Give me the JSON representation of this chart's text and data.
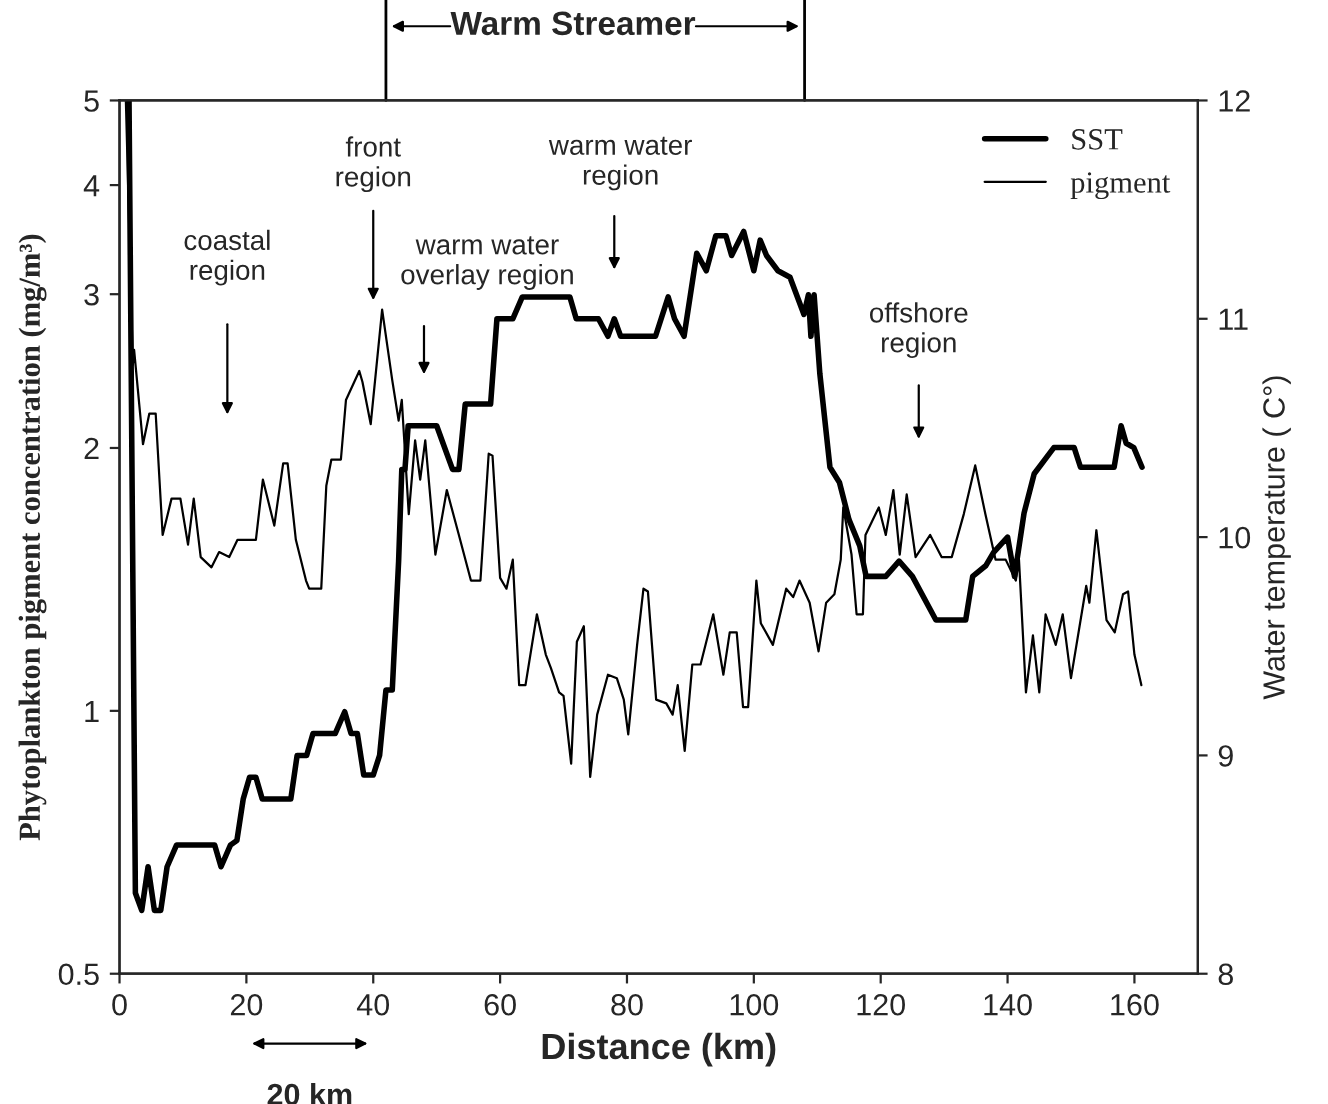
{
  "chart_data": {
    "type": "line",
    "xlabel": "Distance (km)",
    "ylabel": "Phytoplankton pigment concentration (mg/m³)",
    "y2label": "Water temperature ( C°)",
    "xlim": [
      0,
      170
    ],
    "xticks": [
      0,
      20,
      40,
      60,
      80,
      100,
      120,
      140,
      160
    ],
    "ylim": [
      0.5,
      5
    ],
    "yticks": [
      0.5,
      1,
      2,
      3,
      4,
      5
    ],
    "y2lim": [
      8,
      12
    ],
    "y2ticks": [
      8,
      9,
      10,
      11,
      12
    ],
    "log": "y",
    "grid": false,
    "legend": "top right",
    "marker": "none",
    "series": [
      {
        "name": "SST",
        "color": "#000000",
        "axis": "y2",
        "x": [
          1.5,
          2.5,
          3.5,
          4.5,
          5.5,
          6.5,
          7.5,
          9,
          15,
          16,
          17.5,
          18.5,
          19.5,
          20.5,
          21.5,
          22.5,
          27,
          28,
          29.5,
          30.5,
          34,
          35.5,
          36.5,
          37.5,
          38.5,
          40,
          41,
          42,
          43,
          44,
          44.5,
          45,
          45.5,
          50,
          51,
          52.5,
          53.5,
          54.5,
          58.5,
          59.5,
          62,
          63.5,
          71,
          72,
          75.5,
          77,
          78,
          79,
          84.5,
          86.5,
          87.5,
          89,
          91,
          92.5,
          94,
          95.6,
          96.5,
          98.4,
          100,
          101,
          102,
          103.8,
          105.7,
          107.9,
          108.6,
          109,
          109.5,
          110.4,
          112,
          113.5,
          115,
          116.7,
          117.7,
          120.8,
          122.9,
          125,
          128.7,
          133.4,
          134.5,
          136.6,
          137.8,
          140,
          141.1,
          142.6,
          144.2,
          147.3,
          150.5,
          151.5,
          156.8,
          157.9,
          158.7,
          159.9,
          161.2
        ],
        "values": [
          12,
          8.37,
          8.29,
          8.49,
          8.29,
          8.29,
          8.49,
          8.59,
          8.59,
          8.49,
          8.59,
          8.61,
          8.8,
          8.9,
          8.9,
          8.8,
          8.8,
          9.0,
          9.0,
          9.1,
          9.1,
          9.2,
          9.1,
          9.1,
          8.91,
          8.91,
          9.0,
          9.3,
          9.3,
          9.89,
          10.31,
          10.31,
          10.51,
          10.51,
          10.43,
          10.31,
          10.31,
          10.61,
          10.61,
          11.0,
          11.0,
          11.1,
          11.1,
          11.0,
          11.0,
          10.92,
          11.0,
          10.92,
          10.92,
          11.1,
          11.0,
          10.92,
          11.3,
          11.22,
          11.38,
          11.38,
          11.29,
          11.4,
          11.22,
          11.36,
          11.29,
          11.22,
          11.19,
          11.02,
          11.11,
          10.92,
          11.11,
          10.75,
          10.32,
          10.25,
          10.08,
          9.96,
          9.82,
          9.82,
          9.89,
          9.82,
          9.62,
          9.62,
          9.82,
          9.87,
          9.93,
          10.0,
          9.82,
          10.11,
          10.29,
          10.41,
          10.41,
          10.32,
          10.32,
          10.51,
          10.43,
          10.41,
          10.32
        ]
      },
      {
        "name": "pigment",
        "color": "#000000",
        "x": [
          1,
          2.1,
          2.3,
          3.7,
          4.7,
          5.7,
          6.8,
          8.2,
          9.6,
          10.8,
          11.7,
          12.8,
          14.5,
          15.7,
          17.3,
          18.6,
          21.5,
          22.6,
          24.4,
          25.8,
          26.5,
          27.8,
          29.4,
          29.9,
          31.8,
          32.6,
          33.4,
          34.9,
          35.7,
          37.8,
          38.3,
          39.6,
          41.4,
          43,
          44,
          44.5,
          45.6,
          46.6,
          47.4,
          48.2,
          49.8,
          51.6,
          53.5,
          55.4,
          56.9,
          58.2,
          58.8,
          60,
          61,
          62,
          63,
          64,
          65.8,
          67.2,
          68,
          69.3,
          70,
          71.2,
          72.1,
          73.2,
          74.2,
          75.3,
          77,
          78.4,
          79.5,
          80.2,
          81.6,
          82.6,
          83.3,
          84.6,
          86.2,
          87.2,
          88,
          89.1,
          90.3,
          91.6,
          93.6,
          95.2,
          96.2,
          97.3,
          98.3,
          99.1,
          100.4,
          101.1,
          103,
          105.1,
          106.2,
          107.2,
          108.8,
          110.2,
          111.4,
          112.7,
          113.7,
          114.1,
          115.4,
          116.2,
          117.2,
          117.6,
          119.7,
          120.8,
          122,
          123,
          124.1,
          125.5,
          127.8,
          129.6,
          131.2,
          133.1,
          134.9,
          136.5,
          138.1,
          139.7,
          141.3,
          141.8,
          142.9,
          144,
          145,
          146,
          147.6,
          148.7,
          150,
          152.4,
          152.9,
          154,
          155.6,
          156.9,
          158.2,
          159,
          160,
          161.1
        ],
        "values": [
          5,
          2.49,
          2.59,
          2.02,
          2.19,
          2.19,
          1.59,
          1.75,
          1.75,
          1.55,
          1.75,
          1.5,
          1.46,
          1.52,
          1.5,
          1.57,
          1.57,
          1.84,
          1.63,
          1.92,
          1.92,
          1.57,
          1.41,
          1.38,
          1.38,
          1.81,
          1.94,
          1.94,
          2.27,
          2.45,
          2.38,
          2.13,
          2.88,
          2.39,
          2.15,
          2.27,
          1.68,
          2.04,
          1.84,
          2.04,
          1.51,
          1.79,
          1.59,
          1.41,
          1.41,
          1.97,
          1.96,
          1.42,
          1.38,
          1.49,
          1.07,
          1.07,
          1.29,
          1.16,
          1.12,
          1.05,
          1.04,
          0.87,
          1.2,
          1.25,
          0.84,
          0.99,
          1.1,
          1.09,
          1.03,
          0.94,
          1.19,
          1.38,
          1.37,
          1.03,
          1.02,
          0.99,
          1.07,
          0.9,
          1.13,
          1.13,
          1.29,
          1.1,
          1.23,
          1.23,
          1.01,
          1.01,
          1.41,
          1.26,
          1.19,
          1.38,
          1.35,
          1.41,
          1.33,
          1.17,
          1.33,
          1.36,
          1.49,
          1.71,
          1.51,
          1.29,
          1.29,
          1.59,
          1.71,
          1.59,
          1.79,
          1.51,
          1.77,
          1.5,
          1.59,
          1.5,
          1.5,
          1.68,
          1.91,
          1.68,
          1.49,
          1.49,
          1.41,
          1.49,
          1.05,
          1.22,
          1.05,
          1.29,
          1.19,
          1.29,
          1.09,
          1.39,
          1.33,
          1.61,
          1.27,
          1.23,
          1.36,
          1.37,
          1.16,
          1.07
        ]
      }
    ],
    "annotations": [
      "coastal\nregion",
      "front\nregion",
      "warm water\noverlay region",
      "warm water\nregion",
      "offshore\nregion",
      "Warm Streamer",
      "20 km"
    ]
  }
}
